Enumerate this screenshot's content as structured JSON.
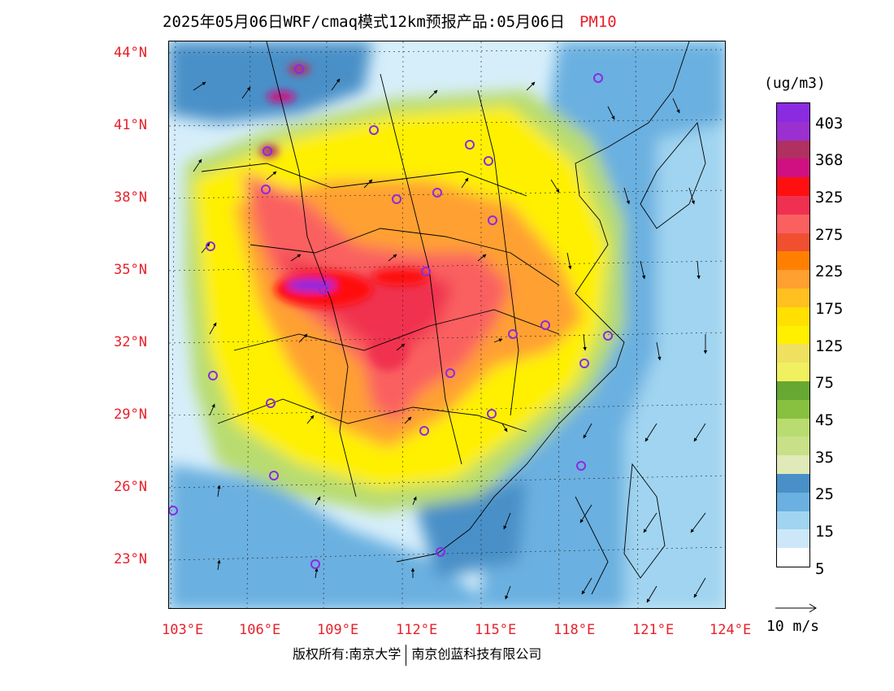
{
  "title": {
    "text": "2025年05月06日WRF/cmaq模式12km预报产品:05月06日",
    "product": "PM10"
  },
  "axes": {
    "lat_labels": [
      "44°N",
      "41°N",
      "38°N",
      "35°N",
      "32°N",
      "29°N",
      "26°N",
      "23°N"
    ],
    "lon_labels": [
      "103°E",
      "106°E",
      "109°E",
      "112°E",
      "115°E",
      "118°E",
      "121°E",
      "124°E"
    ]
  },
  "legend": {
    "units": "(ug/m3)",
    "labels": [
      "403",
      "368",
      "325",
      "275",
      "225",
      "175",
      "125",
      "75",
      "45",
      "35",
      "25",
      "15",
      "5"
    ],
    "colors": [
      "#8a2be2",
      "#9b30d0",
      "#b03060",
      "#d01080",
      "#ff1010",
      "#f03050",
      "#fa6060",
      "#f05030",
      "#ff8000",
      "#ffa030",
      "#ffc020",
      "#ffe000",
      "#fff000",
      "#f0e060",
      "#f0f060",
      "#66a832",
      "#88c040",
      "#b8dc70",
      "#c8e088",
      "#e0eab8",
      "#4a90c8",
      "#6ab0e0",
      "#a0d4f0",
      "#cce8f8",
      "#ffffff"
    ]
  },
  "wind_key": {
    "label": "10 m/s"
  },
  "footer": {
    "left": "版权所有:南京大学",
    "right": "南京创蓝科技有限公司"
  },
  "colors": {
    "accent": "#e8202a",
    "site_marker": "#8a2be2"
  }
}
